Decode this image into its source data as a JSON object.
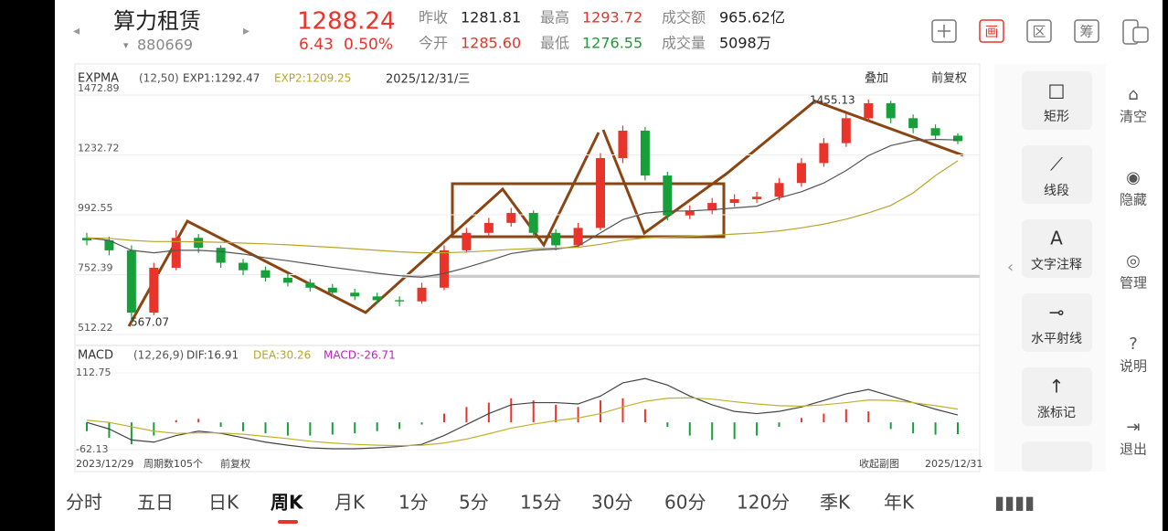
{
  "header": {
    "name": "算力租赁",
    "code": "880669",
    "price": "1288.24",
    "change": "6.43",
    "pct": "0.50%",
    "stats": [
      {
        "label": "昨收",
        "value": "1281.81",
        "tone": "#222"
      },
      {
        "label": "最高",
        "value": "1293.72",
        "tone": "#e8342b"
      },
      {
        "label": "成交额",
        "value": "965.62亿",
        "tone": "#222"
      },
      {
        "label": "今开",
        "value": "1285.60",
        "tone": "#e8342b"
      },
      {
        "label": "最低",
        "value": "1276.55",
        "tone": "#17a03a"
      },
      {
        "label": "成交量",
        "value": "5098万",
        "tone": "#222"
      }
    ],
    "tools": [
      "画",
      "区",
      "筹"
    ]
  },
  "chart_data": {
    "type": "candlestick",
    "indicator": "EXPMA",
    "params": "(12,50)",
    "exp1_label": "EXP1:1292.47",
    "exp2_label": "EXP2:1209.25",
    "date": "2025/12/31/三",
    "overlay": "叠加",
    "adjust": "前复权",
    "ylim": [
      512.22,
      1472.89
    ],
    "yticks": [
      1472.89,
      1232.72,
      992.55,
      752.39,
      512.22
    ],
    "low_label": "567.07",
    "high_label": "1455.13",
    "up_color": "#e8342b",
    "down_color": "#17a03a",
    "candles": [
      [
        900,
        920,
        870,
        890
      ],
      [
        890,
        905,
        830,
        850
      ],
      [
        850,
        870,
        567,
        600
      ],
      [
        600,
        800,
        590,
        780
      ],
      [
        780,
        930,
        770,
        900
      ],
      [
        900,
        915,
        840,
        860
      ],
      [
        860,
        870,
        780,
        800
      ],
      [
        800,
        815,
        750,
        770
      ],
      [
        770,
        785,
        725,
        740
      ],
      [
        740,
        755,
        705,
        720
      ],
      [
        720,
        735,
        685,
        700
      ],
      [
        700,
        715,
        665,
        680
      ],
      [
        680,
        695,
        650,
        665
      ],
      [
        665,
        680,
        635,
        650
      ],
      [
        650,
        665,
        625,
        645
      ],
      [
        645,
        720,
        635,
        700
      ],
      [
        700,
        870,
        690,
        850
      ],
      [
        850,
        940,
        840,
        920
      ],
      [
        920,
        980,
        905,
        960
      ],
      [
        960,
        1020,
        945,
        1000
      ],
      [
        1000,
        1010,
        900,
        920
      ],
      [
        920,
        935,
        850,
        870
      ],
      [
        870,
        960,
        860,
        940
      ],
      [
        940,
        1240,
        930,
        1220
      ],
      [
        1220,
        1350,
        1200,
        1330
      ],
      [
        1330,
        1345,
        1130,
        1150
      ],
      [
        1150,
        1165,
        970,
        990
      ],
      [
        990,
        1030,
        975,
        1010
      ],
      [
        1010,
        1060,
        995,
        1040
      ],
      [
        1040,
        1075,
        1025,
        1055
      ],
      [
        1055,
        1085,
        1040,
        1065
      ],
      [
        1065,
        1140,
        1050,
        1120
      ],
      [
        1120,
        1220,
        1105,
        1200
      ],
      [
        1200,
        1300,
        1185,
        1280
      ],
      [
        1280,
        1400,
        1265,
        1380
      ],
      [
        1380,
        1455,
        1365,
        1440
      ],
      [
        1440,
        1450,
        1360,
        1380
      ],
      [
        1380,
        1395,
        1320,
        1340
      ],
      [
        1340,
        1355,
        1295,
        1310
      ],
      [
        1310,
        1320,
        1276,
        1288
      ]
    ],
    "series": [
      {
        "name": "EXP1",
        "color": "#555555",
        "values": [
          900,
          890,
          850,
          840,
          850,
          850,
          845,
          835,
          820,
          808,
          795,
          782,
          770,
          758,
          748,
          742,
          757,
          781,
          808,
          837,
          850,
          855,
          867,
          920,
          973,
          999,
          1007,
          1008,
          1013,
          1020,
          1027,
          1060,
          1085,
          1120,
          1170,
          1230,
          1270,
          1290,
          1295,
          1292.47
        ]
      },
      {
        "name": "EXP2",
        "color": "#b8a52a",
        "values": [
          900,
          898,
          890,
          885,
          885,
          884,
          882,
          879,
          876,
          872,
          867,
          862,
          856,
          850,
          844,
          840,
          840,
          843,
          848,
          854,
          857,
          859,
          862,
          874,
          890,
          900,
          903,
          906,
          910,
          915,
          920,
          928,
          940,
          955,
          975,
          1000,
          1030,
          1080,
          1150,
          1209.25
        ]
      }
    ],
    "macd": {
      "name": "MACD",
      "params": "(12,26,9)",
      "dif_label": "DIF:16.91",
      "dea_label": "DEA:30.26",
      "macd_label": "MACD:-26.71",
      "ylim": [
        -62.13,
        112.75
      ],
      "yticks": [
        112.75,
        -62.13
      ],
      "values": [
        -20,
        -35,
        -50,
        -30,
        5,
        8,
        -10,
        -20,
        -25,
        -30,
        -30,
        -28,
        -25,
        -20,
        -15,
        -5,
        20,
        35,
        45,
        55,
        50,
        40,
        35,
        50,
        55,
        30,
        -10,
        -30,
        -40,
        -38,
        -30,
        -10,
        10,
        20,
        30,
        25,
        -15,
        -25,
        -28,
        -26.71
      ],
      "dif": [
        0,
        -15,
        -40,
        -45,
        -30,
        -20,
        -25,
        -35,
        -45,
        -52,
        -58,
        -60,
        -60,
        -58,
        -55,
        -50,
        -30,
        -5,
        20,
        40,
        45,
        45,
        42,
        60,
        90,
        100,
        85,
        60,
        40,
        25,
        20,
        25,
        35,
        50,
        65,
        75,
        60,
        45,
        30,
        16.91
      ],
      "dea": [
        5,
        0,
        -10,
        -20,
        -25,
        -24,
        -24,
        -27,
        -32,
        -37,
        -43,
        -47,
        -50,
        -52,
        -53,
        -52,
        -47,
        -38,
        -26,
        -13,
        -4,
        4,
        10,
        20,
        35,
        48,
        55,
        56,
        53,
        47,
        42,
        38,
        37,
        40,
        45,
        51,
        50,
        45,
        38,
        30.26
      ]
    },
    "start_date": "2023/12/29",
    "periods": "周期数105个",
    "adjust2": "前复权",
    "collapse": "收起副图",
    "end_date": "2025/12/31"
  },
  "tabs": [
    "分时",
    "五日",
    "日K",
    "周K",
    "月K",
    "1分",
    "5分",
    "15分",
    "30分",
    "60分",
    "120分",
    "季K",
    "年K"
  ],
  "active_tab": 3,
  "side_tools": [
    "矩形",
    "线段",
    "文字注释",
    "水平射线",
    "涨标记"
  ],
  "right_tools": [
    "清空",
    "隐藏",
    "管理",
    "说明",
    "退出"
  ]
}
